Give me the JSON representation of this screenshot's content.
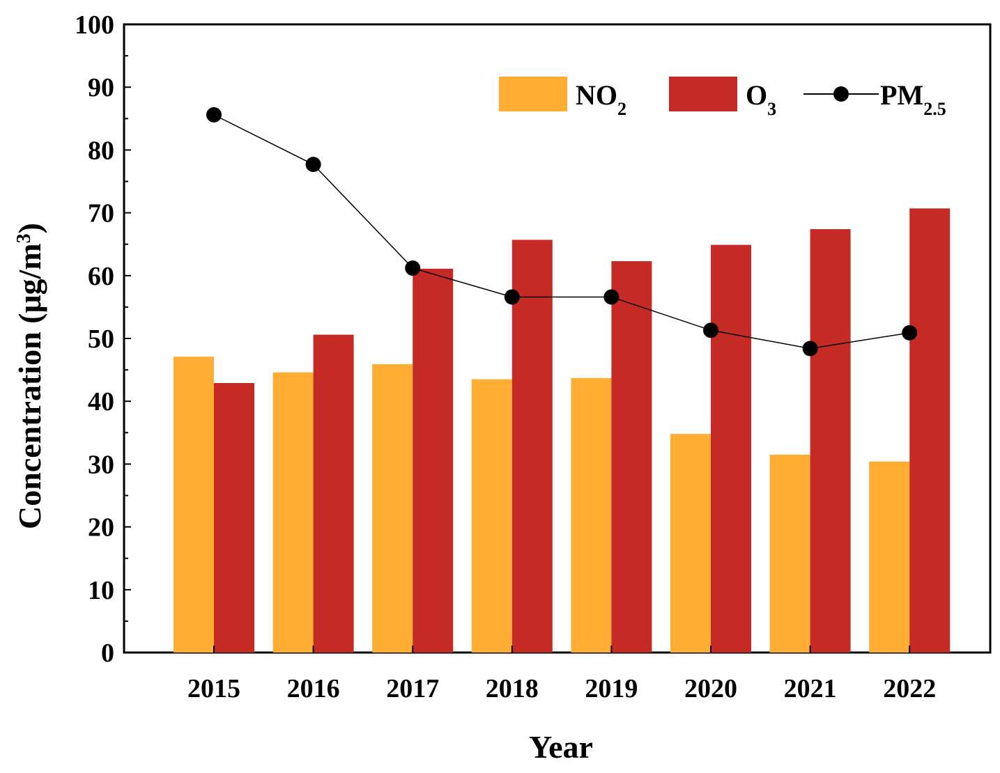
{
  "chart_data": {
    "type": "bar",
    "title": "",
    "xlabel": "Year",
    "ylabel": "Concentration (μg/m",
    "ylabel_sup": "3",
    "ylabel_close": ")",
    "ylim": [
      0,
      100
    ],
    "yticks": [
      "0",
      "10",
      "20",
      "30",
      "40",
      "50",
      "60",
      "70",
      "80",
      "90",
      "100"
    ],
    "categories": [
      "2015",
      "2016",
      "2017",
      "2018",
      "2019",
      "2020",
      "2021",
      "2022"
    ],
    "series": [
      {
        "name": "NO",
        "sub": "2",
        "kind": "bar",
        "color": "#FFAD33",
        "values": [
          47.1,
          44.6,
          45.9,
          43.5,
          43.7,
          34.8,
          31.5,
          30.4
        ]
      },
      {
        "name": "O",
        "sub": "3",
        "kind": "bar",
        "color": "#C62A24",
        "values": [
          42.9,
          50.6,
          61.1,
          65.7,
          62.3,
          64.9,
          67.4,
          70.7
        ]
      },
      {
        "name": "PM",
        "sub": "2.5",
        "kind": "line",
        "color": "#000000",
        "values": [
          85.6,
          77.7,
          61.2,
          56.6,
          56.6,
          51.3,
          48.4,
          50.9
        ]
      }
    ],
    "legend_position": "top-right"
  }
}
